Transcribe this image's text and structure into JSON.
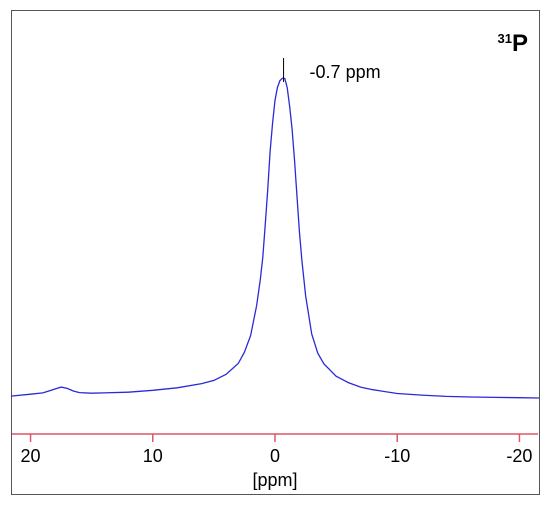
{
  "chart_data": {
    "type": "line",
    "title": "",
    "nucleus_label": {
      "mass_number": "31",
      "element": "P"
    },
    "xlabel": "[ppm]",
    "ylabel": "",
    "x_reversed": true,
    "xlim": [
      21.6,
      -21.6
    ],
    "ylim": [
      0,
      1
    ],
    "xticks": [
      20,
      10,
      0,
      -10,
      -20
    ],
    "xtick_labels": [
      "20",
      "10",
      "0",
      "-10",
      "-20"
    ],
    "grid": false,
    "legend": "none",
    "annotations": [
      {
        "text": "-0.7 ppm",
        "x": -0.7
      }
    ],
    "series": [
      {
        "x": [
          21.6,
          20,
          19,
          18.5,
          18,
          17.5,
          17,
          16.5,
          16,
          15,
          14,
          12,
          10,
          8,
          6,
          5,
          4,
          3,
          2.5,
          2,
          1.5,
          1.2,
          1,
          0.8,
          0.6,
          0.4,
          0.2,
          0,
          -0.2,
          -0.4,
          -0.6,
          -0.7,
          -0.8,
          -1,
          -1.2,
          -1.4,
          -1.6,
          -1.8,
          -2,
          -2.2,
          -2.5,
          -3,
          -3.5,
          -4,
          -5,
          -6,
          -7,
          -8,
          -10,
          -12,
          -14,
          -16,
          -18,
          -20,
          -21.6
        ],
        "values": [
          0.006,
          0.012,
          0.016,
          0.022,
          0.028,
          0.034,
          0.03,
          0.022,
          0.017,
          0.015,
          0.016,
          0.018,
          0.024,
          0.032,
          0.045,
          0.055,
          0.074,
          0.108,
          0.143,
          0.195,
          0.29,
          0.37,
          0.44,
          0.54,
          0.65,
          0.77,
          0.86,
          0.93,
          0.97,
          0.992,
          0.999,
          1.0,
          0.998,
          0.97,
          0.91,
          0.84,
          0.74,
          0.63,
          0.52,
          0.43,
          0.32,
          0.2,
          0.14,
          0.107,
          0.068,
          0.048,
          0.034,
          0.026,
          0.014,
          0.009,
          0.005,
          0.003,
          0.002,
          0.001,
          0.0
        ]
      }
    ],
    "colors": {
      "trace": "#2a2ad8",
      "baseline": "#e0556a",
      "frame": "#555555",
      "text": "#000000",
      "peak_marker": "#000000"
    }
  }
}
